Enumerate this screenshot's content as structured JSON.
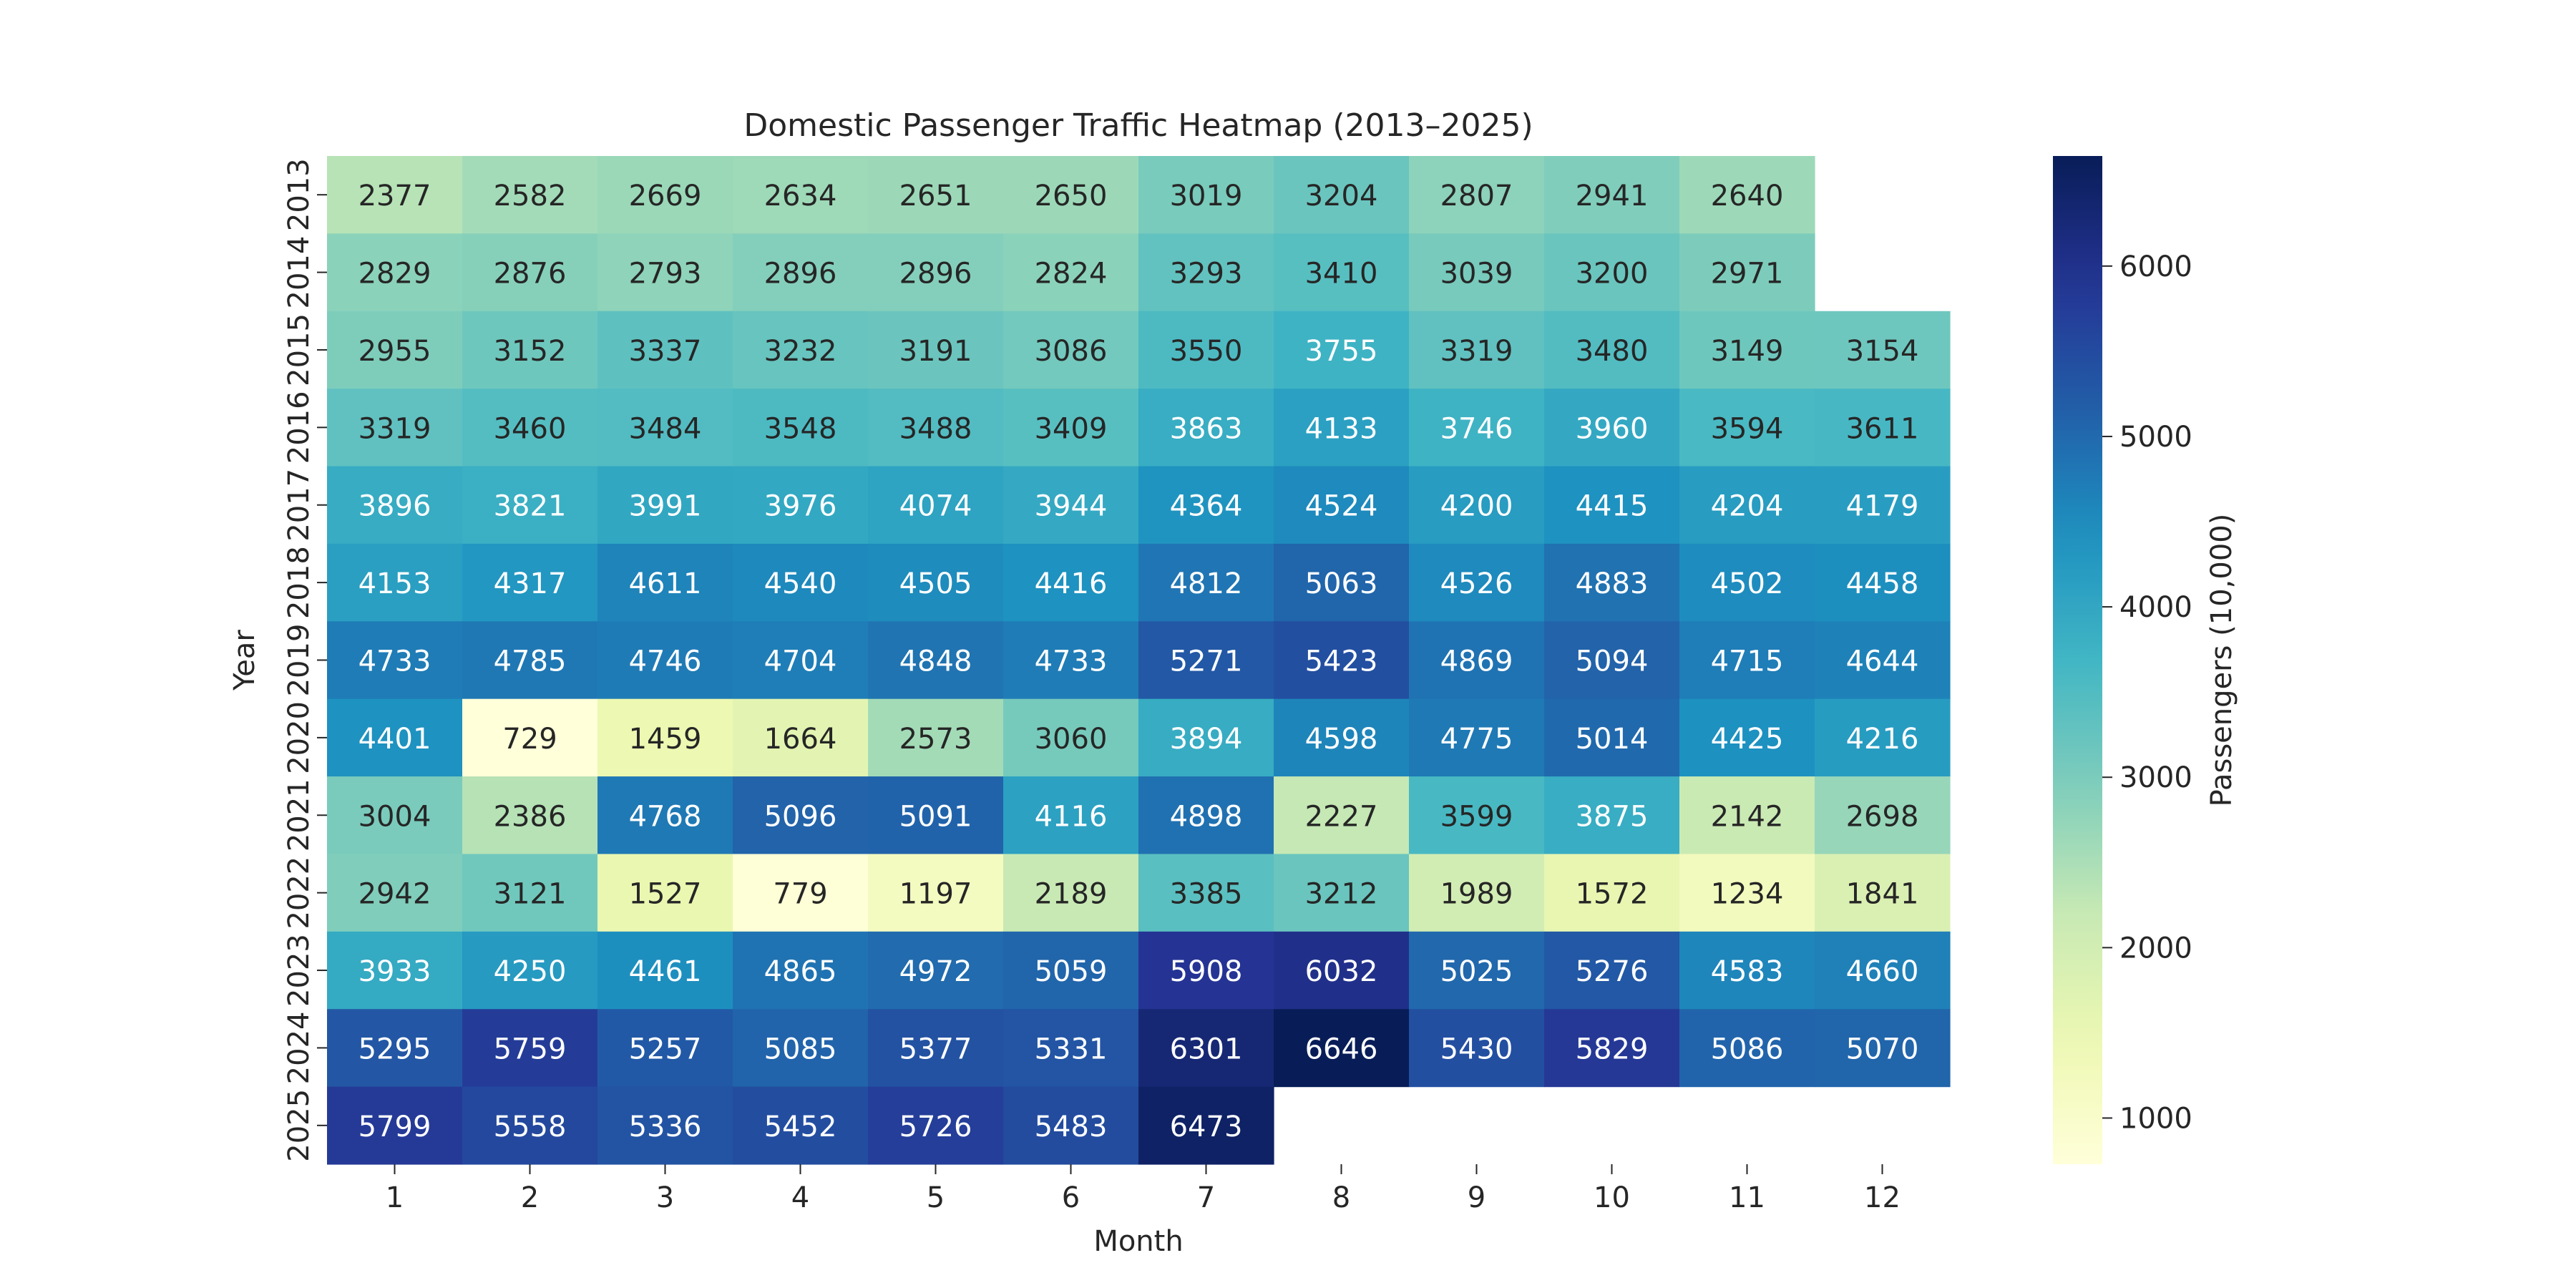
{
  "chart_data": {
    "type": "heatmap",
    "title": "Domestic Passenger Traffic Heatmap (2013–2025)",
    "xlabel": "Month",
    "ylabel": "Year",
    "x_categories": [
      "1",
      "2",
      "3",
      "4",
      "5",
      "6",
      "7",
      "8",
      "9",
      "10",
      "11",
      "12"
    ],
    "y_categories": [
      "2013",
      "2014",
      "2015",
      "2016",
      "2017",
      "2018",
      "2019",
      "2020",
      "2021",
      "2022",
      "2023",
      "2024",
      "2025"
    ],
    "values": [
      [
        2377,
        2582,
        2669,
        2634,
        2651,
        2650,
        3019,
        3204,
        2807,
        2941,
        2640,
        null
      ],
      [
        2829,
        2876,
        2793,
        2896,
        2896,
        2824,
        3293,
        3410,
        3039,
        3200,
        2971,
        null
      ],
      [
        2955,
        3152,
        3337,
        3232,
        3191,
        3086,
        3550,
        3755,
        3319,
        3480,
        3149,
        3154
      ],
      [
        3319,
        3460,
        3484,
        3548,
        3488,
        3409,
        3863,
        4133,
        3746,
        3960,
        3594,
        3611
      ],
      [
        3896,
        3821,
        3991,
        3976,
        4074,
        3944,
        4364,
        4524,
        4200,
        4415,
        4204,
        4179
      ],
      [
        4153,
        4317,
        4611,
        4540,
        4505,
        4416,
        4812,
        5063,
        4526,
        4883,
        4502,
        4458
      ],
      [
        4733,
        4785,
        4746,
        4704,
        4848,
        4733,
        5271,
        5423,
        4869,
        5094,
        4715,
        4644
      ],
      [
        4401,
        729,
        1459,
        1664,
        2573,
        3060,
        3894,
        4598,
        4775,
        5014,
        4425,
        4216
      ],
      [
        3004,
        2386,
        4768,
        5096,
        5091,
        4116,
        4898,
        2227,
        3599,
        3875,
        2142,
        2698
      ],
      [
        2942,
        3121,
        1527,
        779,
        1197,
        2189,
        3385,
        3212,
        1989,
        1572,
        1234,
        1841
      ],
      [
        3933,
        4250,
        4461,
        4865,
        4972,
        5059,
        5908,
        6032,
        5025,
        5276,
        4583,
        4660
      ],
      [
        5295,
        5759,
        5257,
        5085,
        5377,
        5331,
        6301,
        6646,
        5430,
        5829,
        5086,
        5070
      ],
      [
        5799,
        5558,
        5336,
        5452,
        5726,
        5483,
        6473,
        null,
        null,
        null,
        null,
        null
      ]
    ],
    "colorbar": {
      "label": "Passengers (10,000)",
      "ticks": [
        1000,
        2000,
        3000,
        4000,
        5000,
        6000
      ],
      "range": [
        729,
        6646
      ],
      "colormap": "YlGnBu"
    }
  }
}
